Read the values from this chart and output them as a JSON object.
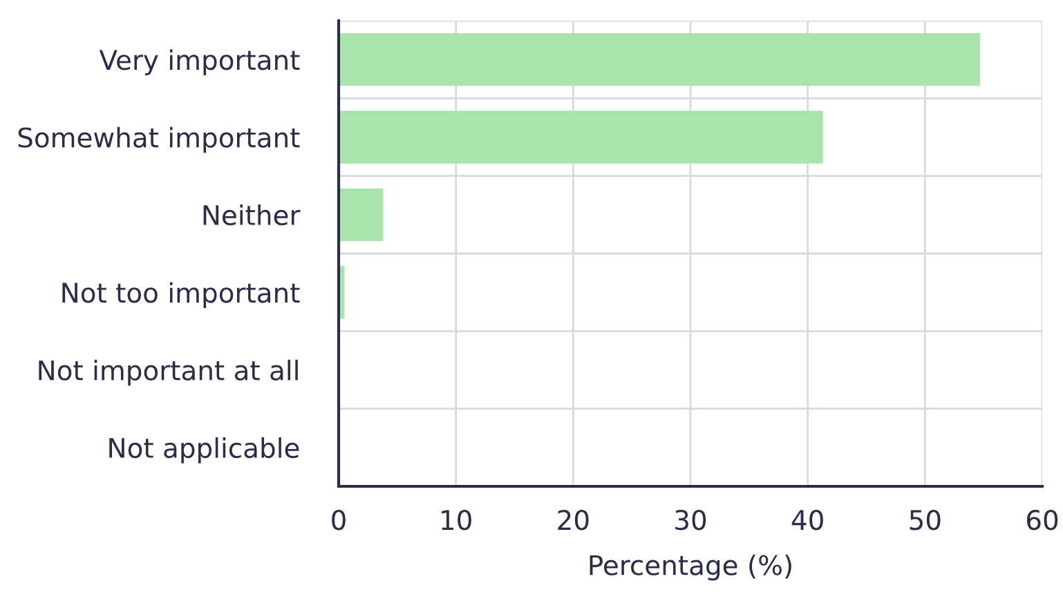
{
  "chart_data": {
    "type": "bar",
    "orientation": "horizontal",
    "xlabel": "Percentage (%)",
    "categories": [
      "Very important",
      "Somewhat important",
      "Neither",
      "Not too important",
      "Not important at all",
      "Not applicable"
    ],
    "values": [
      54.7,
      41.3,
      3.8,
      0.5,
      0,
      0
    ],
    "color": "#a8e4ab",
    "xlim": [
      0,
      60
    ],
    "xticks": [
      0,
      10,
      20,
      30,
      40,
      50,
      60
    ],
    "grid": true
  }
}
